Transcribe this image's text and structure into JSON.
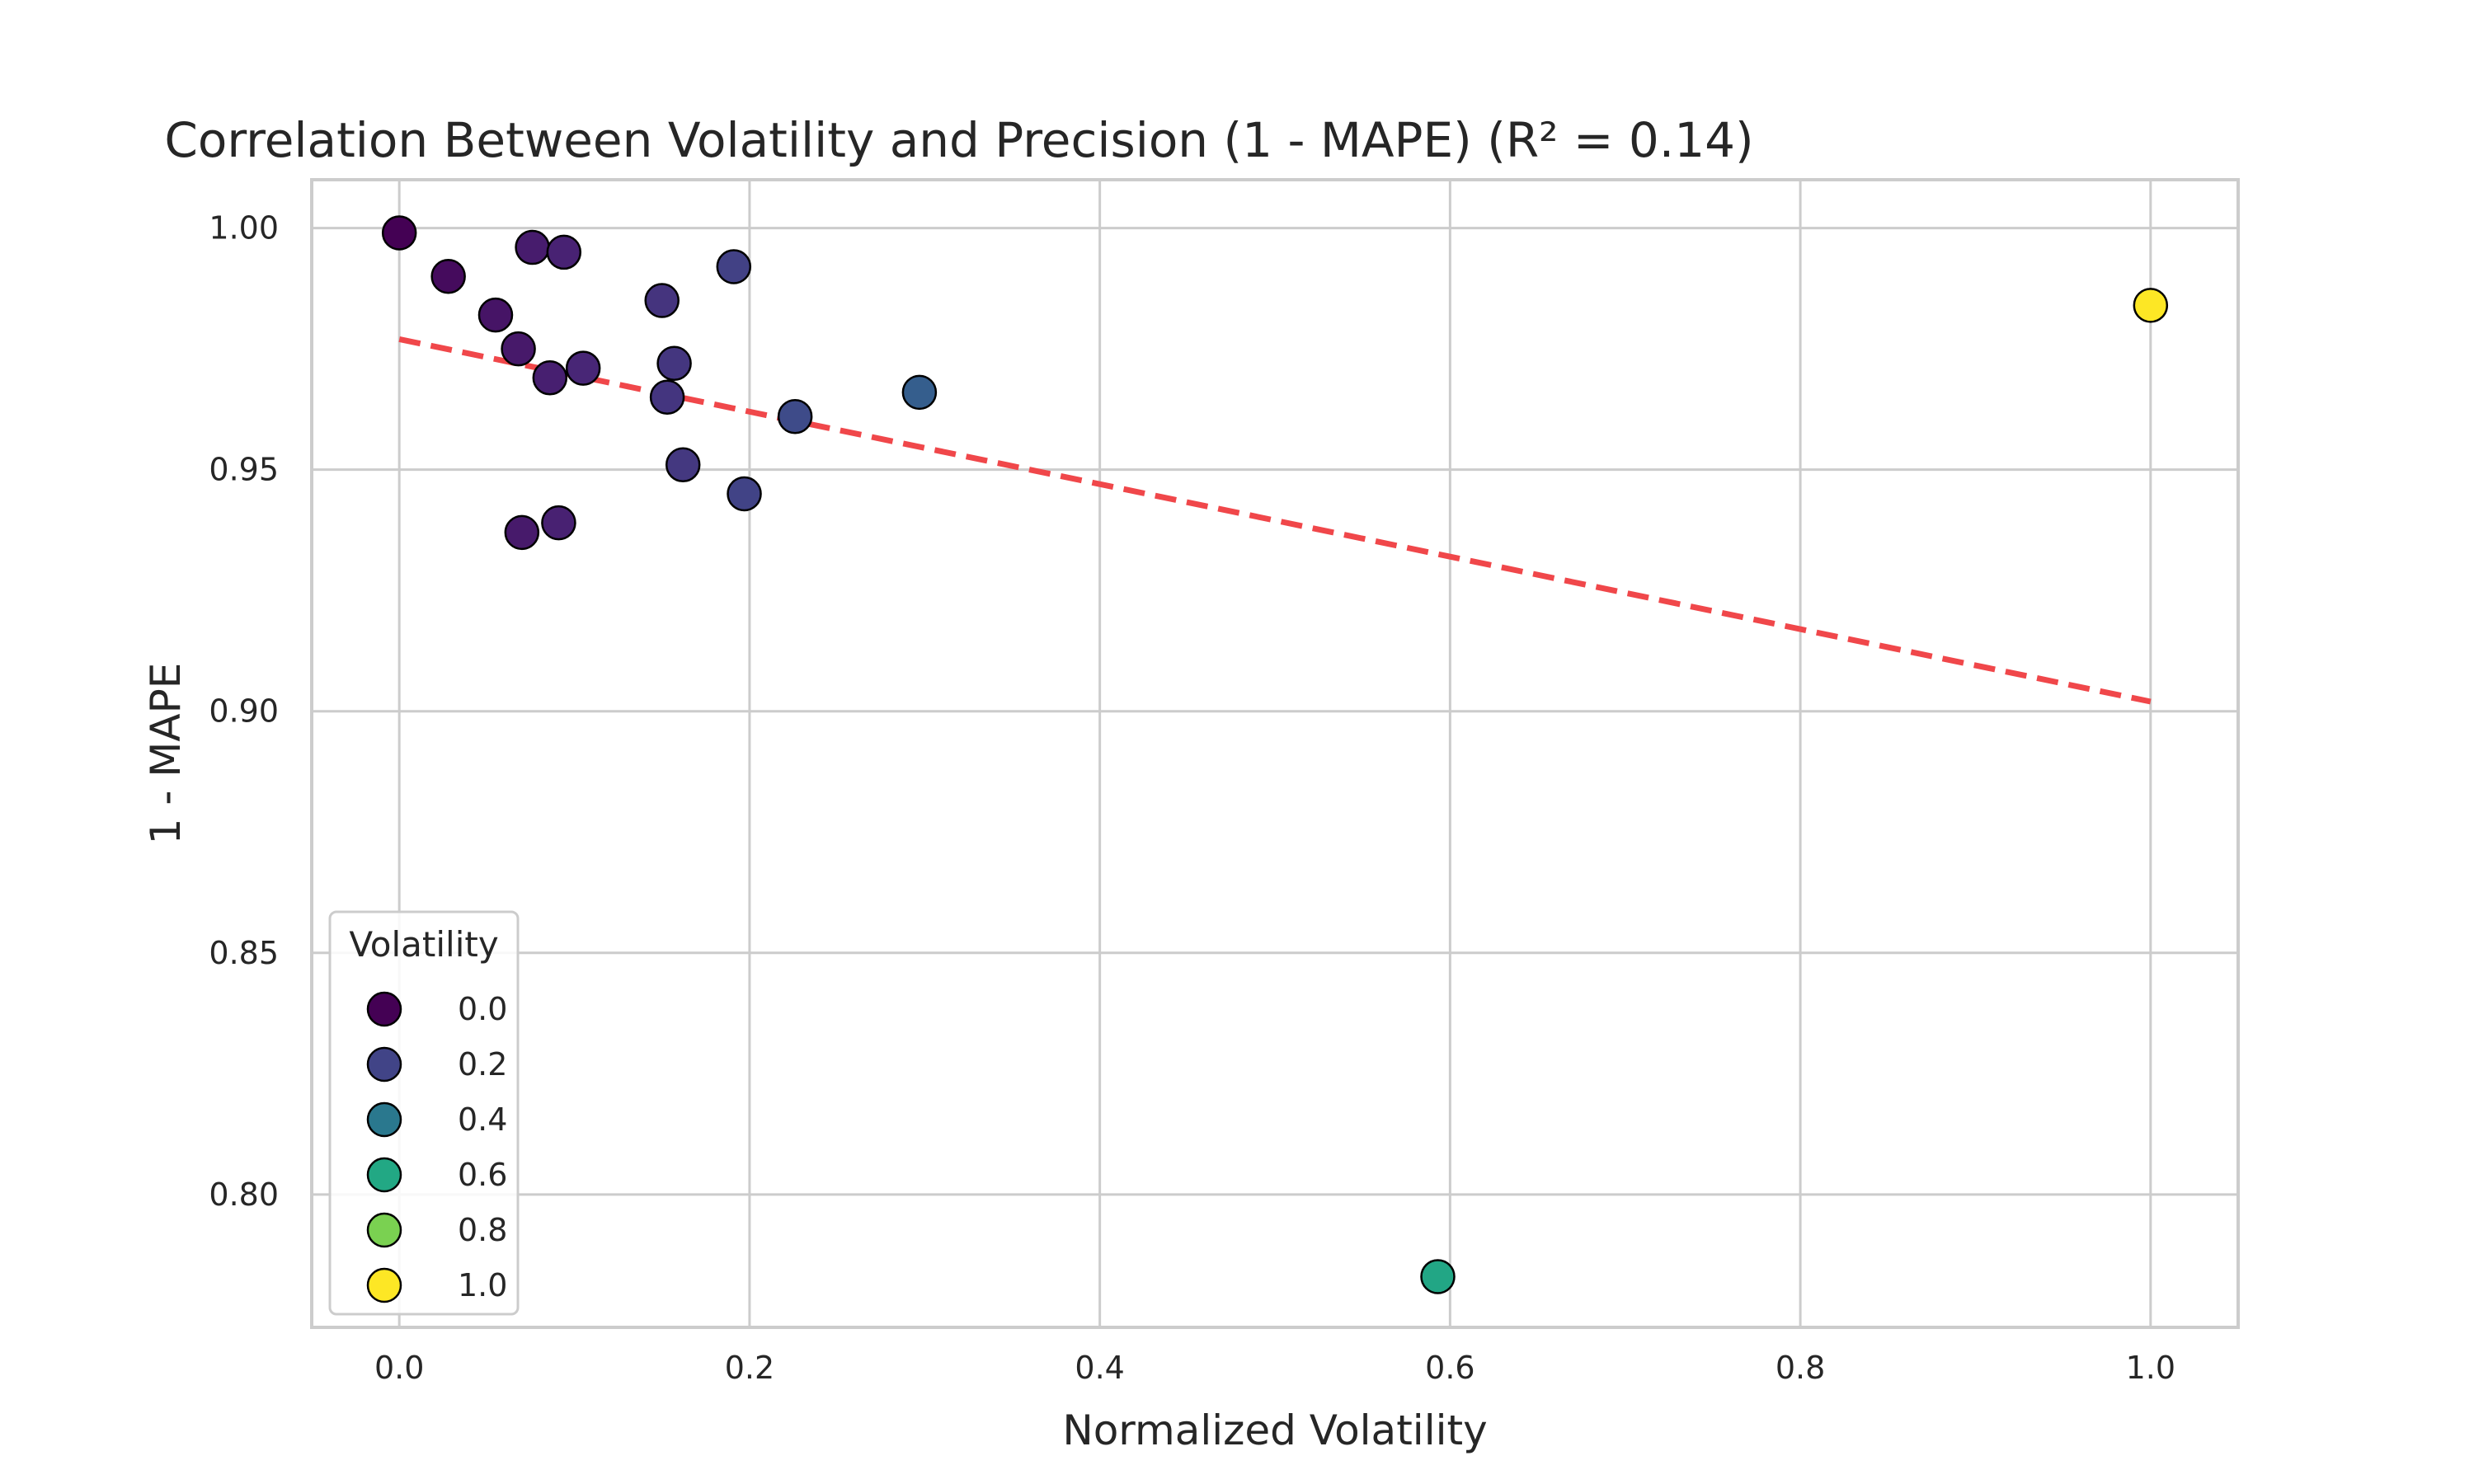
{
  "chart_data": {
    "type": "scatter",
    "title": "Correlation Between Volatility and Precision (1 - MAPE) (R² = 0.14)",
    "xlabel": "Normalized Volatility",
    "ylabel": "1 - MAPE",
    "xlim": [
      -0.05,
      1.05
    ],
    "ylim": [
      0.7725,
      1.01
    ],
    "x_ticks": [
      0.0,
      0.2,
      0.4,
      0.6,
      0.8,
      1.0
    ],
    "x_tick_labels": [
      "0.0",
      "0.2",
      "0.4",
      "0.6",
      "0.8",
      "1.0"
    ],
    "y_ticks": [
      0.8,
      0.85,
      0.9,
      0.95,
      1.0
    ],
    "y_tick_labels": [
      "0.80",
      "0.85",
      "0.90",
      "0.95",
      "1.00"
    ],
    "grid": true,
    "points": [
      {
        "x": 0.0,
        "y": 0.999,
        "c": 0.0
      },
      {
        "x": 0.028,
        "y": 0.99,
        "c": 0.028
      },
      {
        "x": 0.055,
        "y": 0.982,
        "c": 0.055
      },
      {
        "x": 0.068,
        "y": 0.975,
        "c": 0.068
      },
      {
        "x": 0.076,
        "y": 0.996,
        "c": 0.076
      },
      {
        "x": 0.094,
        "y": 0.995,
        "c": 0.094
      },
      {
        "x": 0.086,
        "y": 0.969,
        "c": 0.086
      },
      {
        "x": 0.105,
        "y": 0.971,
        "c": 0.105
      },
      {
        "x": 0.07,
        "y": 0.937,
        "c": 0.07
      },
      {
        "x": 0.091,
        "y": 0.939,
        "c": 0.091
      },
      {
        "x": 0.15,
        "y": 0.985,
        "c": 0.15
      },
      {
        "x": 0.157,
        "y": 0.972,
        "c": 0.157
      },
      {
        "x": 0.153,
        "y": 0.965,
        "c": 0.153
      },
      {
        "x": 0.162,
        "y": 0.951,
        "c": 0.162
      },
      {
        "x": 0.191,
        "y": 0.992,
        "c": 0.191
      },
      {
        "x": 0.197,
        "y": 0.945,
        "c": 0.197
      },
      {
        "x": 0.226,
        "y": 0.961,
        "c": 0.226
      },
      {
        "x": 0.297,
        "y": 0.966,
        "c": 0.297
      },
      {
        "x": 0.593,
        "y": 0.783,
        "c": 0.593
      },
      {
        "x": 1.0,
        "y": 0.984,
        "c": 1.0
      }
    ],
    "trend_line": {
      "x": [
        0.0,
        1.0
      ],
      "y": [
        0.977,
        0.902
      ],
      "color": "#f0474a",
      "style": "dashed"
    },
    "legend": {
      "title": "Volatility",
      "placement": "lower-left",
      "entries": [
        {
          "label": "0.0",
          "value": 0.0
        },
        {
          "label": "0.2",
          "value": 0.2
        },
        {
          "label": "0.4",
          "value": 0.4
        },
        {
          "label": "0.6",
          "value": 0.6
        },
        {
          "label": "0.8",
          "value": 0.8
        },
        {
          "label": "1.0",
          "value": 1.0
        }
      ]
    },
    "colormap": "viridis",
    "colormap_stops": [
      "#440154",
      "#482475",
      "#414487",
      "#355f8d",
      "#2a788e",
      "#21918c",
      "#22a884",
      "#44bf70",
      "#7ad151",
      "#bddf26",
      "#fde725"
    ],
    "grid_color": "#cccccc",
    "marker_edge_color": "#000000"
  }
}
